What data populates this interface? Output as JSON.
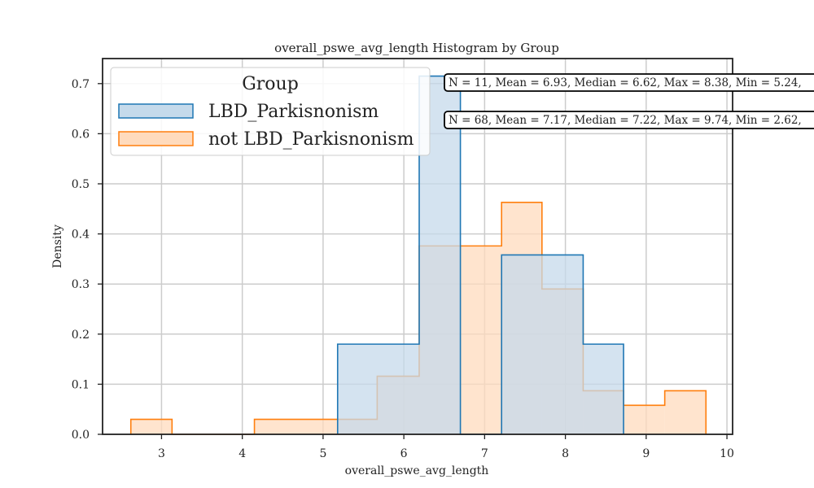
{
  "chart_data": {
    "type": "histogram",
    "title": "overall_pswe_avg_length Histogram by Group",
    "xlabel": "overall_pswe_avg_length",
    "ylabel": "Density",
    "xlim": [
      2.27,
      10.07
    ],
    "ylim": [
      0,
      0.75
    ],
    "x_ticks": [
      3,
      4,
      5,
      6,
      7,
      8,
      9,
      10
    ],
    "y_ticks": [
      0.0,
      0.1,
      0.2,
      0.3,
      0.4,
      0.5,
      0.6,
      0.7
    ],
    "x_tick_labels": [
      "3",
      "4",
      "5",
      "6",
      "7",
      "8",
      "9",
      "10"
    ],
    "y_tick_labels": [
      "0.0",
      "0.1",
      "0.2",
      "0.3",
      "0.4",
      "0.5",
      "0.6",
      "0.7"
    ],
    "grid": true,
    "legend": {
      "title": "Group",
      "position": "top-left"
    },
    "series": [
      {
        "name": "LBD_Parkisnonism",
        "color": "#1f77b4",
        "fill": "#c5daeb",
        "bins": [
          {
            "x0": 5.18,
            "x1": 6.19,
            "y": 0.18
          },
          {
            "x0": 6.19,
            "x1": 6.7,
            "y": 0.715
          },
          {
            "x0": 6.7,
            "x1": 7.21,
            "y": 0.0
          },
          {
            "x0": 7.21,
            "x1": 8.22,
            "y": 0.358
          },
          {
            "x0": 8.22,
            "x1": 8.72,
            "y": 0.18
          }
        ],
        "stats": "N = 11, Mean = 6.93, Median = 6.62, Max = 8.38, Min = 5.24,"
      },
      {
        "name": "not LBD_Parkisnonism",
        "color": "#ff7f0e",
        "fill": "#ffdbbd",
        "bins": [
          {
            "x0": 2.62,
            "x1": 3.13,
            "y": 0.03
          },
          {
            "x0": 3.13,
            "x1": 4.15,
            "y": 0.0
          },
          {
            "x0": 4.15,
            "x1": 5.67,
            "y": 0.03
          },
          {
            "x0": 5.67,
            "x1": 6.19,
            "y": 0.116
          },
          {
            "x0": 6.19,
            "x1": 7.21,
            "y": 0.376
          },
          {
            "x0": 7.21,
            "x1": 7.71,
            "y": 0.463
          },
          {
            "x0": 7.71,
            "x1": 8.22,
            "y": 0.29
          },
          {
            "x0": 8.22,
            "x1": 8.72,
            "y": 0.087
          },
          {
            "x0": 8.72,
            "x1": 9.23,
            "y": 0.058
          },
          {
            "x0": 9.23,
            "x1": 9.74,
            "y": 0.087
          }
        ],
        "stats": "N = 68, Mean = 7.17, Median = 7.22, Max = 9.74, Min = 2.62,"
      }
    ]
  }
}
